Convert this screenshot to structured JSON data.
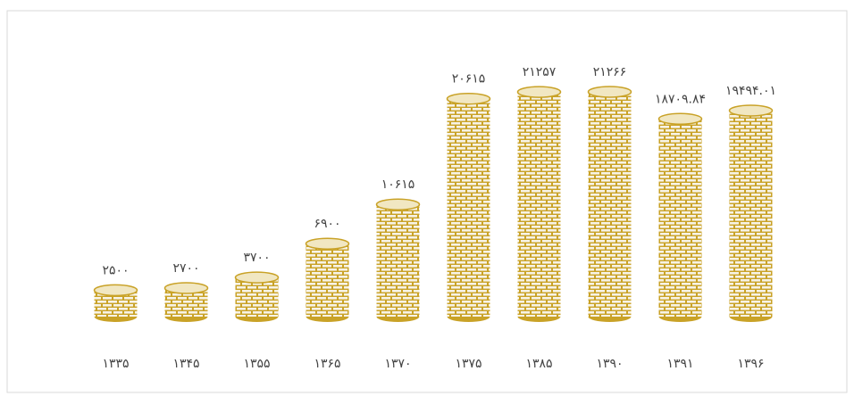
{
  "chart_data": {
    "type": "bar",
    "categories": [
      "۱۳۳۵",
      "۱۳۴۵",
      "۱۳۵۵",
      "۱۳۶۵",
      "۱۳۷۰",
      "۱۳۷۵",
      "۱۳۸۵",
      "۱۳۹۰",
      "۱۳۹۱",
      "۱۳۹۶"
    ],
    "values": [
      2500,
      2700,
      3700,
      6900,
      10615,
      20615,
      21257,
      21266,
      18709.84,
      19494.01
    ],
    "value_labels": [
      "۲۵۰۰",
      "۲۷۰۰",
      "۳۷۰۰",
      "۶۹۰۰",
      "۱۰۶۱۵",
      "۲۰۶۱۵",
      "۲۱۲۵۷",
      "۲۱۲۶۶",
      "۱۸۷۰۹.۸۴",
      "۱۹۴۹۴.۰۱"
    ],
    "color": "#c9a227"
  }
}
